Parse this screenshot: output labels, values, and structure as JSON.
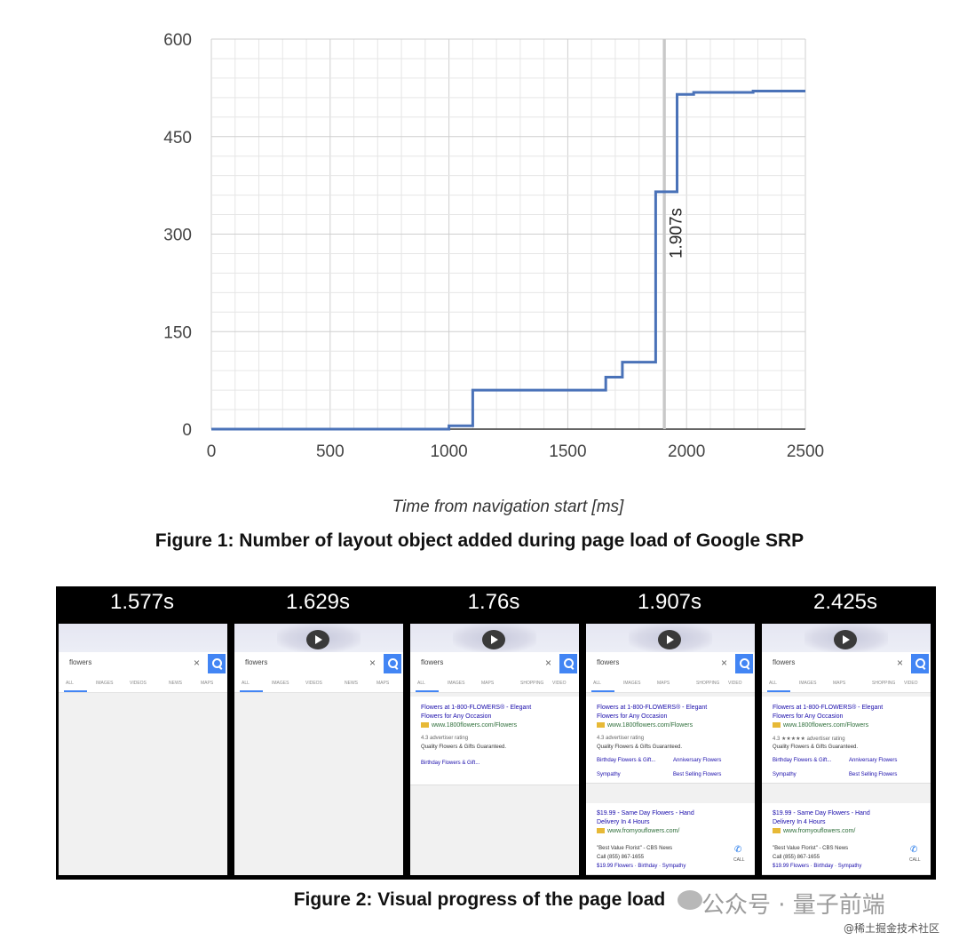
{
  "figure1": {
    "caption": "Figure 1: Number of layout object added during page load of Google SRP"
  },
  "chart_data": {
    "type": "line",
    "xlabel": "Time from navigation start [ms]",
    "ylabel": "",
    "xlim": [
      0,
      2500
    ],
    "ylim": [
      0,
      600
    ],
    "xticks": [
      "0",
      "500",
      "1000",
      "1500",
      "2000",
      "2500"
    ],
    "yticks": [
      "0",
      "150",
      "300",
      "450",
      "600"
    ],
    "grid": true,
    "step": true,
    "series": [
      {
        "color": "#4a72b8",
        "points": [
          [
            0,
            0
          ],
          [
            1000,
            0
          ],
          [
            1000,
            5
          ],
          [
            1100,
            5
          ],
          [
            1100,
            60
          ],
          [
            1660,
            60
          ],
          [
            1660,
            80
          ],
          [
            1730,
            80
          ],
          [
            1730,
            103
          ],
          [
            1870,
            103
          ],
          [
            1870,
            365
          ],
          [
            1960,
            365
          ],
          [
            1960,
            515
          ],
          [
            2030,
            515
          ],
          [
            2030,
            518
          ],
          [
            2280,
            518
          ],
          [
            2280,
            520
          ],
          [
            2500,
            520
          ]
        ]
      }
    ],
    "annotations": [
      {
        "x": 1907,
        "label": "1.907s",
        "line_color": "#c8c8c8"
      }
    ]
  },
  "figure2": {
    "caption": "Figure 2: Visual progress of the page load",
    "frames": [
      {
        "time": "1.577s",
        "hero": false,
        "query": "flowers",
        "tabs": [
          "ALL",
          "IMAGES",
          "VIDEOS",
          "NEWS",
          "MAPS"
        ]
      },
      {
        "time": "1.629s",
        "hero": true,
        "query": "flowers",
        "tabs": [
          "ALL",
          "IMAGES",
          "VIDEOS",
          "NEWS",
          "MAPS"
        ]
      },
      {
        "time": "1.76s",
        "hero": true,
        "query": "flowers",
        "tabs": [
          "ALL",
          "IMAGES",
          "MAPS",
          "SHOPPING",
          "VIDEO"
        ]
      },
      {
        "time": "1.907s",
        "hero": true,
        "query": "flowers",
        "tabs": [
          "ALL",
          "IMAGES",
          "MAPS",
          "SHOPPING",
          "VIDEO"
        ]
      },
      {
        "time": "2.425s",
        "hero": true,
        "query": "flowers",
        "tabs": [
          "ALL",
          "IMAGES",
          "MAPS",
          "SHOPPING",
          "VIDEO"
        ]
      }
    ],
    "ad1": {
      "title1": "Flowers at 1-800-FLOWERS® - Elegant",
      "title2": "Flowers for Any Occasion",
      "url": "www.1800flowers.com/Flowers",
      "rating": "4.3",
      "rating_label": "advertiser rating",
      "tagline": "Quality Flowers & Gifts Guaranteed.",
      "link1": "Birthday Flowers & Gift...",
      "link2": "Anniversary Flowers",
      "link3": "Sympathy",
      "link4": "Best Selling Flowers"
    },
    "ad2": {
      "title1": "$19.99 - Same Day Flowers - Hand",
      "title2": "Delivery In 4 Hours",
      "url": "www.fromyouflowers.com/",
      "quote": "\"Best Value Florist\" - CBS News",
      "phone": "Call (855) 867-1655",
      "line3": "$19.99 Flowers · Birthday · Sympathy",
      "call_label": "CALL"
    }
  },
  "watermark": {
    "text": "公众号 · 量子前端",
    "footer": "@稀土掘金技术社区"
  }
}
